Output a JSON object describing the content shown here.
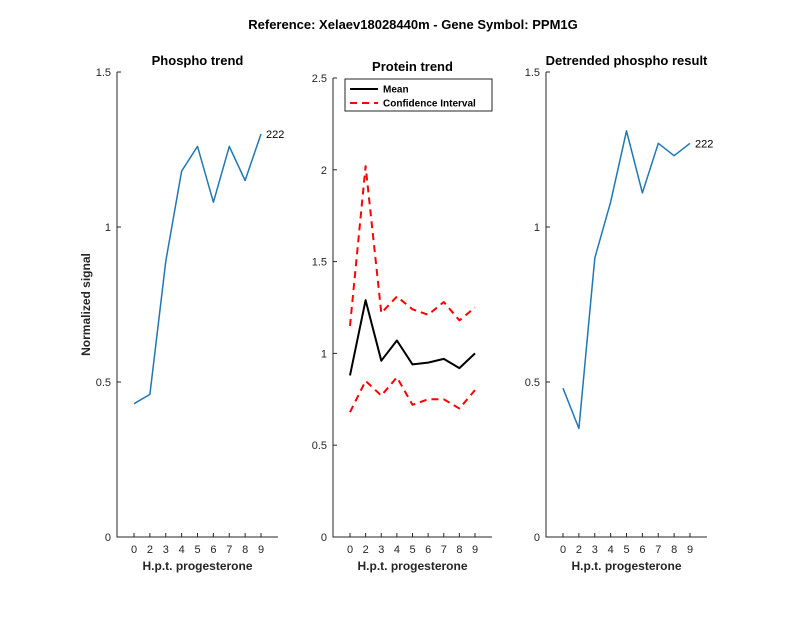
{
  "figure": {
    "title": "Reference:  Xelaev18028440m - Gene Symbol:  PPM1G"
  },
  "chart_data": [
    {
      "type": "line",
      "title": "Phospho trend",
      "xlabel": "H.p.t. progesterone",
      "ylabel": "Normalized signal",
      "categories": [
        "0",
        "2",
        "3",
        "4",
        "5",
        "6",
        "7",
        "8",
        "9"
      ],
      "ylim": [
        0,
        1.5
      ],
      "yticks": [
        "0",
        "0.5",
        "1",
        "1.5"
      ],
      "series": [
        {
          "name": "",
          "color": "#1f77b4",
          "values": [
            0.43,
            0.46,
            0.89,
            1.18,
            1.26,
            1.08,
            1.26,
            1.15,
            1.3
          ]
        }
      ],
      "end_label": "222",
      "grid": false
    },
    {
      "type": "line",
      "title": "Protein trend",
      "xlabel": "H.p.t. progesterone",
      "ylabel": "",
      "categories": [
        "0",
        "2",
        "3",
        "4",
        "5",
        "6",
        "7",
        "8",
        "9"
      ],
      "ylim": [
        0,
        2.5
      ],
      "yticks": [
        "0",
        "0.5",
        "1",
        "1.5",
        "2",
        "2.5"
      ],
      "series": [
        {
          "name": "Mean",
          "color": "#000000",
          "style": "solid",
          "values": [
            0.88,
            1.29,
            0.96,
            1.07,
            0.94,
            0.95,
            0.97,
            0.92,
            1.0
          ]
        },
        {
          "name": "Confidence Interval",
          "color": "#ff0000",
          "style": "dashed",
          "values": [
            1.15,
            2.02,
            1.22,
            1.31,
            1.24,
            1.21,
            1.28,
            1.18,
            1.25
          ]
        },
        {
          "name": "",
          "color": "#ff0000",
          "style": "dashed",
          "values": [
            0.68,
            0.85,
            0.77,
            0.87,
            0.72,
            0.75,
            0.75,
            0.7,
            0.8
          ]
        }
      ],
      "legend": [
        "Mean",
        "Confidence Interval"
      ],
      "legend_position": "top-left",
      "grid": false
    },
    {
      "type": "line",
      "title": "Detrended phospho result",
      "xlabel": "H.p.t. progesterone",
      "ylabel": "",
      "categories": [
        "0",
        "2",
        "3",
        "4",
        "5",
        "6",
        "7",
        "8",
        "9"
      ],
      "ylim": [
        0,
        1.5
      ],
      "yticks": [
        "0",
        "0.5",
        "1",
        "1.5"
      ],
      "series": [
        {
          "name": "",
          "color": "#1f77b4",
          "values": [
            0.48,
            0.35,
            0.9,
            1.08,
            1.31,
            1.11,
            1.27,
            1.23,
            1.27
          ]
        }
      ],
      "end_label": "222",
      "grid": false
    }
  ]
}
